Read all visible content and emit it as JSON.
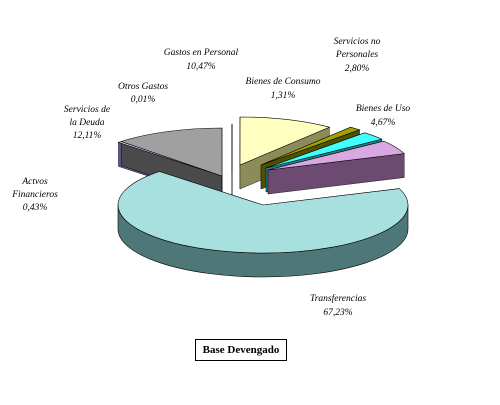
{
  "chart_data": {
    "type": "pie",
    "title": "Base Devengado",
    "slices": [
      {
        "name": "Transferencias",
        "value": 67.23,
        "label": "67,23%",
        "color": "#A8E0E0",
        "side": "#4E7878"
      },
      {
        "name": "Actvos Financieros",
        "value": 0.43,
        "label": "0,43%",
        "color": "#C8C8FF",
        "side": "#5A5A90"
      },
      {
        "name": "Servicios de la Deuda",
        "value": 12.11,
        "label": "12,11%",
        "color": "#A0A0A0",
        "side": "#4A4A4A"
      },
      {
        "name": "Otros Gastos",
        "value": 0.01,
        "label": "0,01%",
        "color": "#A03030",
        "side": "#601818"
      },
      {
        "name": "Gastos en Personal",
        "value": 10.47,
        "label": "10,47%",
        "color": "#FFFFC0",
        "side": "#8C8C5A"
      },
      {
        "name": "Bienes de Consumo",
        "value": 1.31,
        "label": "1,31%",
        "color": "#A0A000",
        "side": "#505000"
      },
      {
        "name": "Servicios no Personales",
        "value": 2.8,
        "label": "2,80%",
        "color": "#40FFFF",
        "side": "#208080"
      },
      {
        "name": "Bienes de Uso",
        "value": 4.67,
        "label": "4,67%",
        "color": "#D8A8E0",
        "side": "#6C4A72"
      }
    ],
    "legend": "none"
  }
}
